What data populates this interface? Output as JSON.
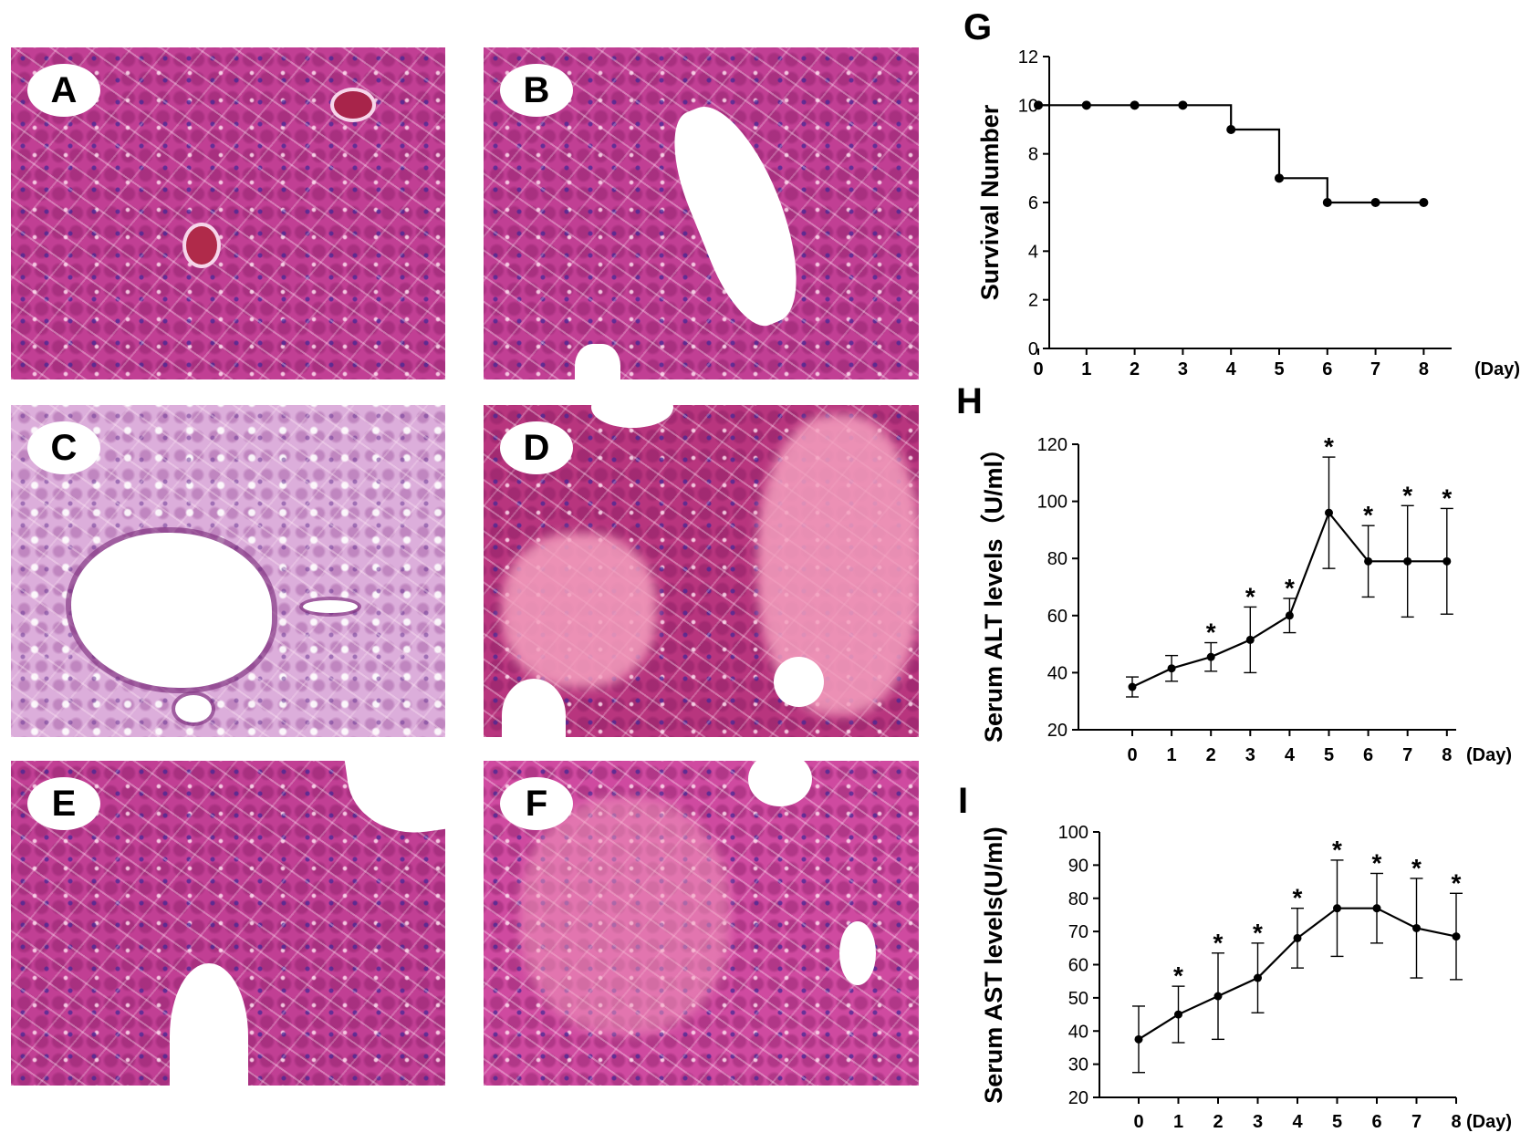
{
  "panels": {
    "A": {
      "label": "A"
    },
    "B": {
      "label": "B"
    },
    "C": {
      "label": "C"
    },
    "D": {
      "label": "D"
    },
    "E": {
      "label": "E"
    },
    "F": {
      "label": "F"
    }
  },
  "chart_labels": {
    "G": "G",
    "H": "H",
    "I": "I"
  },
  "colors": {
    "line": "#000000",
    "tissue": "#c13f94",
    "background": "#ffffff"
  },
  "chart_data": [
    {
      "type": "line",
      "panel": "G",
      "step": true,
      "ylabel": "Survival Number",
      "xunit": "(Day)",
      "x": [
        0,
        1,
        2,
        3,
        4,
        5,
        6,
        7,
        8
      ],
      "values": [
        10,
        10,
        10,
        10,
        9,
        7,
        6,
        6,
        6
      ],
      "ylim": [
        0,
        12
      ],
      "yticks": [
        0,
        2,
        4,
        6,
        8,
        10,
        12
      ]
    },
    {
      "type": "line",
      "panel": "H",
      "ylabel": "Serum ALT levels（U/ml）",
      "xunit": "(Day)",
      "x": [
        0,
        1,
        2,
        3,
        4,
        5,
        6,
        7,
        8
      ],
      "values": [
        35,
        41.5,
        45.5,
        51.5,
        60,
        96,
        79,
        79,
        79
      ],
      "errors": [
        3.5,
        4.5,
        5,
        11.5,
        6,
        19.5,
        12.5,
        19.5,
        18.5
      ],
      "significant": [
        false,
        false,
        true,
        true,
        true,
        true,
        true,
        true,
        true
      ],
      "marker": "*",
      "ylim": [
        20,
        120
      ],
      "yticks": [
        20,
        40,
        60,
        80,
        100,
        120
      ]
    },
    {
      "type": "line",
      "panel": "I",
      "ylabel": "Serum AST levels(U/ml)",
      "xunit": "(Day)",
      "x": [
        0,
        1,
        2,
        3,
        4,
        5,
        6,
        7,
        8
      ],
      "values": [
        37.5,
        45,
        50.5,
        56,
        68,
        77,
        77,
        71,
        68.5
      ],
      "errors": [
        10,
        8.5,
        13,
        10.5,
        9,
        14.5,
        10.5,
        15,
        13
      ],
      "significant": [
        false,
        true,
        true,
        true,
        true,
        true,
        true,
        true,
        true
      ],
      "marker": "*",
      "ylim": [
        20,
        100
      ],
      "yticks": [
        20,
        30,
        40,
        50,
        60,
        70,
        80,
        90,
        100
      ]
    }
  ]
}
